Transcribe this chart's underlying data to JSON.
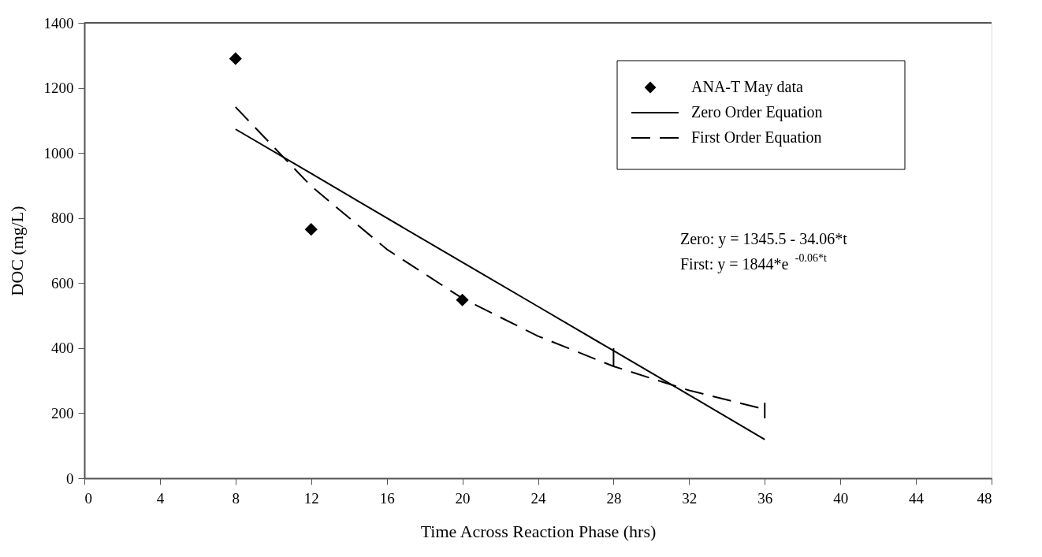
{
  "chart_data": {
    "type": "scatter",
    "xlabel": "Time Across Reaction Phase (hrs)",
    "ylabel": "DOC (mg/L)",
    "xlim": [
      0,
      48
    ],
    "xticks": [
      0,
      4,
      8,
      12,
      16,
      20,
      24,
      28,
      32,
      36,
      40,
      44,
      48
    ],
    "ylim": [
      0,
      1400
    ],
    "yticks": [
      0,
      200,
      400,
      600,
      800,
      1000,
      1200,
      1400
    ],
    "grid": false,
    "legend": "top right",
    "series": [
      {
        "name": "ANA-T May data",
        "marker": "diamond",
        "color": "#000000",
        "x": [
          8,
          12,
          20
        ],
        "values": [
          1290,
          765,
          548
        ]
      },
      {
        "name": "Zero Order Equation",
        "type": "line",
        "line_style": "solid",
        "color": "#000000",
        "x": [
          8,
          12,
          16,
          20,
          24,
          28,
          32,
          36
        ],
        "values": [
          1073,
          937,
          800,
          664,
          528,
          392,
          256,
          119
        ]
      },
      {
        "name": "First Order Equation",
        "type": "line",
        "line_style": "dashed",
        "color": "#000000",
        "x": [
          8,
          12,
          16,
          20,
          24,
          28,
          32,
          36
        ],
        "values": [
          1141,
          898,
          704,
          553,
          437,
          344,
          270,
          212
        ],
        "errors": [
          null,
          null,
          null,
          null,
          null,
          [
            344,
            400
          ],
          null,
          [
            184,
            232
          ]
        ]
      }
    ],
    "annotations": [
      "Zero: y = 1345.5 - 34.06*t",
      "First: y = 1844*e$^{-0.06*t}$"
    ]
  }
}
